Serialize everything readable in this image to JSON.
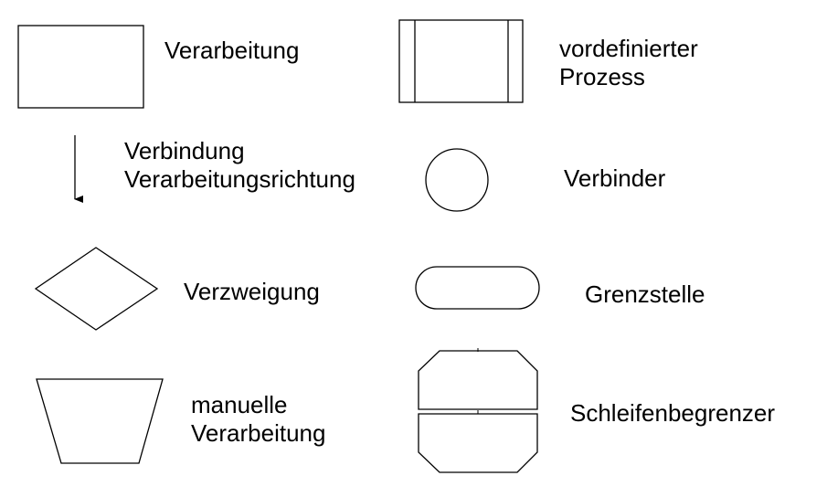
{
  "legend": {
    "processing": {
      "label": "Verarbeitung"
    },
    "predefined_process": {
      "line1": "vordefinierter",
      "line2": "Prozess"
    },
    "connection": {
      "line1": "Verbindung",
      "line2": "Verarbeitungsrichtung"
    },
    "connector": {
      "label": "Verbinder"
    },
    "branch": {
      "label": "Verzweigung"
    },
    "terminal": {
      "label": "Grenzstelle"
    },
    "manual_processing": {
      "line1": "manuelle",
      "line2": "Verarbeitung"
    },
    "loop_limit": {
      "label": "Schleifenbegrenzer"
    }
  },
  "colors": {
    "stroke": "#000000",
    "fill": "#ffffff",
    "text": "#000000"
  }
}
